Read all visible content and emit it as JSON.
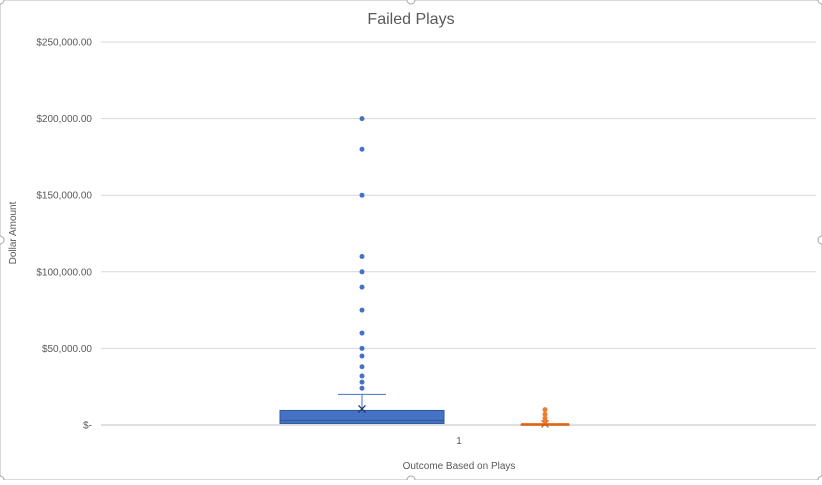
{
  "chart_data": {
    "type": "box",
    "title": "Failed Plays",
    "xlabel": "Outcome Based on Plays",
    "ylabel": "Dollar Amount",
    "categories": [
      "1"
    ],
    "ylim": [
      0,
      250000
    ],
    "yticks": [
      0,
      50000,
      100000,
      150000,
      200000,
      250000
    ],
    "ytick_labels": [
      "$-",
      "$50,000.00",
      "$100,000.00",
      "$150,000.00",
      "$200,000.00",
      "$250,000.00"
    ],
    "grid": true,
    "legend": "none",
    "series": [
      {
        "color": "#4472c4",
        "min": 0,
        "q1": 1000,
        "median": 3000,
        "q3": 9500,
        "max": 20000,
        "mean": 10500,
        "outliers": [
          24000,
          28000,
          32000,
          38000,
          45000,
          50000,
          60000,
          75000,
          90000,
          100000,
          110000,
          150000,
          180000,
          200000
        ]
      },
      {
        "color": "#ed7d31",
        "min": 0,
        "q1": 0,
        "median": 100,
        "q3": 400,
        "max": 1000,
        "mean": 700,
        "outliers": [
          2500,
          4500,
          7000,
          10000
        ]
      }
    ]
  }
}
